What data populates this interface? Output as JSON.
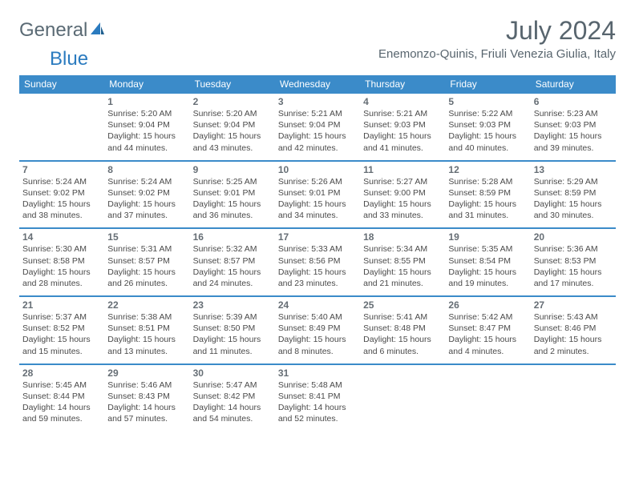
{
  "logo": {
    "part1": "General",
    "part2": "Blue"
  },
  "title": "July 2024",
  "location": "Enemonzo-Quinis, Friuli Venezia Giulia, Italy",
  "header_bg": "#3b8bc9",
  "days": [
    "Sunday",
    "Monday",
    "Tuesday",
    "Wednesday",
    "Thursday",
    "Friday",
    "Saturday"
  ],
  "cells": [
    {
      "n": "",
      "sr": "",
      "ss": "",
      "dl": ""
    },
    {
      "n": "1",
      "sr": "5:20 AM",
      "ss": "9:04 PM",
      "dl": "15 hours and 44 minutes."
    },
    {
      "n": "2",
      "sr": "5:20 AM",
      "ss": "9:04 PM",
      "dl": "15 hours and 43 minutes."
    },
    {
      "n": "3",
      "sr": "5:21 AM",
      "ss": "9:04 PM",
      "dl": "15 hours and 42 minutes."
    },
    {
      "n": "4",
      "sr": "5:21 AM",
      "ss": "9:03 PM",
      "dl": "15 hours and 41 minutes."
    },
    {
      "n": "5",
      "sr": "5:22 AM",
      "ss": "9:03 PM",
      "dl": "15 hours and 40 minutes."
    },
    {
      "n": "6",
      "sr": "5:23 AM",
      "ss": "9:03 PM",
      "dl": "15 hours and 39 minutes."
    },
    {
      "n": "7",
      "sr": "5:24 AM",
      "ss": "9:02 PM",
      "dl": "15 hours and 38 minutes."
    },
    {
      "n": "8",
      "sr": "5:24 AM",
      "ss": "9:02 PM",
      "dl": "15 hours and 37 minutes."
    },
    {
      "n": "9",
      "sr": "5:25 AM",
      "ss": "9:01 PM",
      "dl": "15 hours and 36 minutes."
    },
    {
      "n": "10",
      "sr": "5:26 AM",
      "ss": "9:01 PM",
      "dl": "15 hours and 34 minutes."
    },
    {
      "n": "11",
      "sr": "5:27 AM",
      "ss": "9:00 PM",
      "dl": "15 hours and 33 minutes."
    },
    {
      "n": "12",
      "sr": "5:28 AM",
      "ss": "8:59 PM",
      "dl": "15 hours and 31 minutes."
    },
    {
      "n": "13",
      "sr": "5:29 AM",
      "ss": "8:59 PM",
      "dl": "15 hours and 30 minutes."
    },
    {
      "n": "14",
      "sr": "5:30 AM",
      "ss": "8:58 PM",
      "dl": "15 hours and 28 minutes."
    },
    {
      "n": "15",
      "sr": "5:31 AM",
      "ss": "8:57 PM",
      "dl": "15 hours and 26 minutes."
    },
    {
      "n": "16",
      "sr": "5:32 AM",
      "ss": "8:57 PM",
      "dl": "15 hours and 24 minutes."
    },
    {
      "n": "17",
      "sr": "5:33 AM",
      "ss": "8:56 PM",
      "dl": "15 hours and 23 minutes."
    },
    {
      "n": "18",
      "sr": "5:34 AM",
      "ss": "8:55 PM",
      "dl": "15 hours and 21 minutes."
    },
    {
      "n": "19",
      "sr": "5:35 AM",
      "ss": "8:54 PM",
      "dl": "15 hours and 19 minutes."
    },
    {
      "n": "20",
      "sr": "5:36 AM",
      "ss": "8:53 PM",
      "dl": "15 hours and 17 minutes."
    },
    {
      "n": "21",
      "sr": "5:37 AM",
      "ss": "8:52 PM",
      "dl": "15 hours and 15 minutes."
    },
    {
      "n": "22",
      "sr": "5:38 AM",
      "ss": "8:51 PM",
      "dl": "15 hours and 13 minutes."
    },
    {
      "n": "23",
      "sr": "5:39 AM",
      "ss": "8:50 PM",
      "dl": "15 hours and 11 minutes."
    },
    {
      "n": "24",
      "sr": "5:40 AM",
      "ss": "8:49 PM",
      "dl": "15 hours and 8 minutes."
    },
    {
      "n": "25",
      "sr": "5:41 AM",
      "ss": "8:48 PM",
      "dl": "15 hours and 6 minutes."
    },
    {
      "n": "26",
      "sr": "5:42 AM",
      "ss": "8:47 PM",
      "dl": "15 hours and 4 minutes."
    },
    {
      "n": "27",
      "sr": "5:43 AM",
      "ss": "8:46 PM",
      "dl": "15 hours and 2 minutes."
    },
    {
      "n": "28",
      "sr": "5:45 AM",
      "ss": "8:44 PM",
      "dl": "14 hours and 59 minutes."
    },
    {
      "n": "29",
      "sr": "5:46 AM",
      "ss": "8:43 PM",
      "dl": "14 hours and 57 minutes."
    },
    {
      "n": "30",
      "sr": "5:47 AM",
      "ss": "8:42 PM",
      "dl": "14 hours and 54 minutes."
    },
    {
      "n": "31",
      "sr": "5:48 AM",
      "ss": "8:41 PM",
      "dl": "14 hours and 52 minutes."
    },
    {
      "n": "",
      "sr": "",
      "ss": "",
      "dl": ""
    },
    {
      "n": "",
      "sr": "",
      "ss": "",
      "dl": ""
    },
    {
      "n": "",
      "sr": "",
      "ss": "",
      "dl": ""
    }
  ],
  "labels": {
    "sunrise": "Sunrise:",
    "sunset": "Sunset:",
    "daylight": "Daylight:"
  }
}
